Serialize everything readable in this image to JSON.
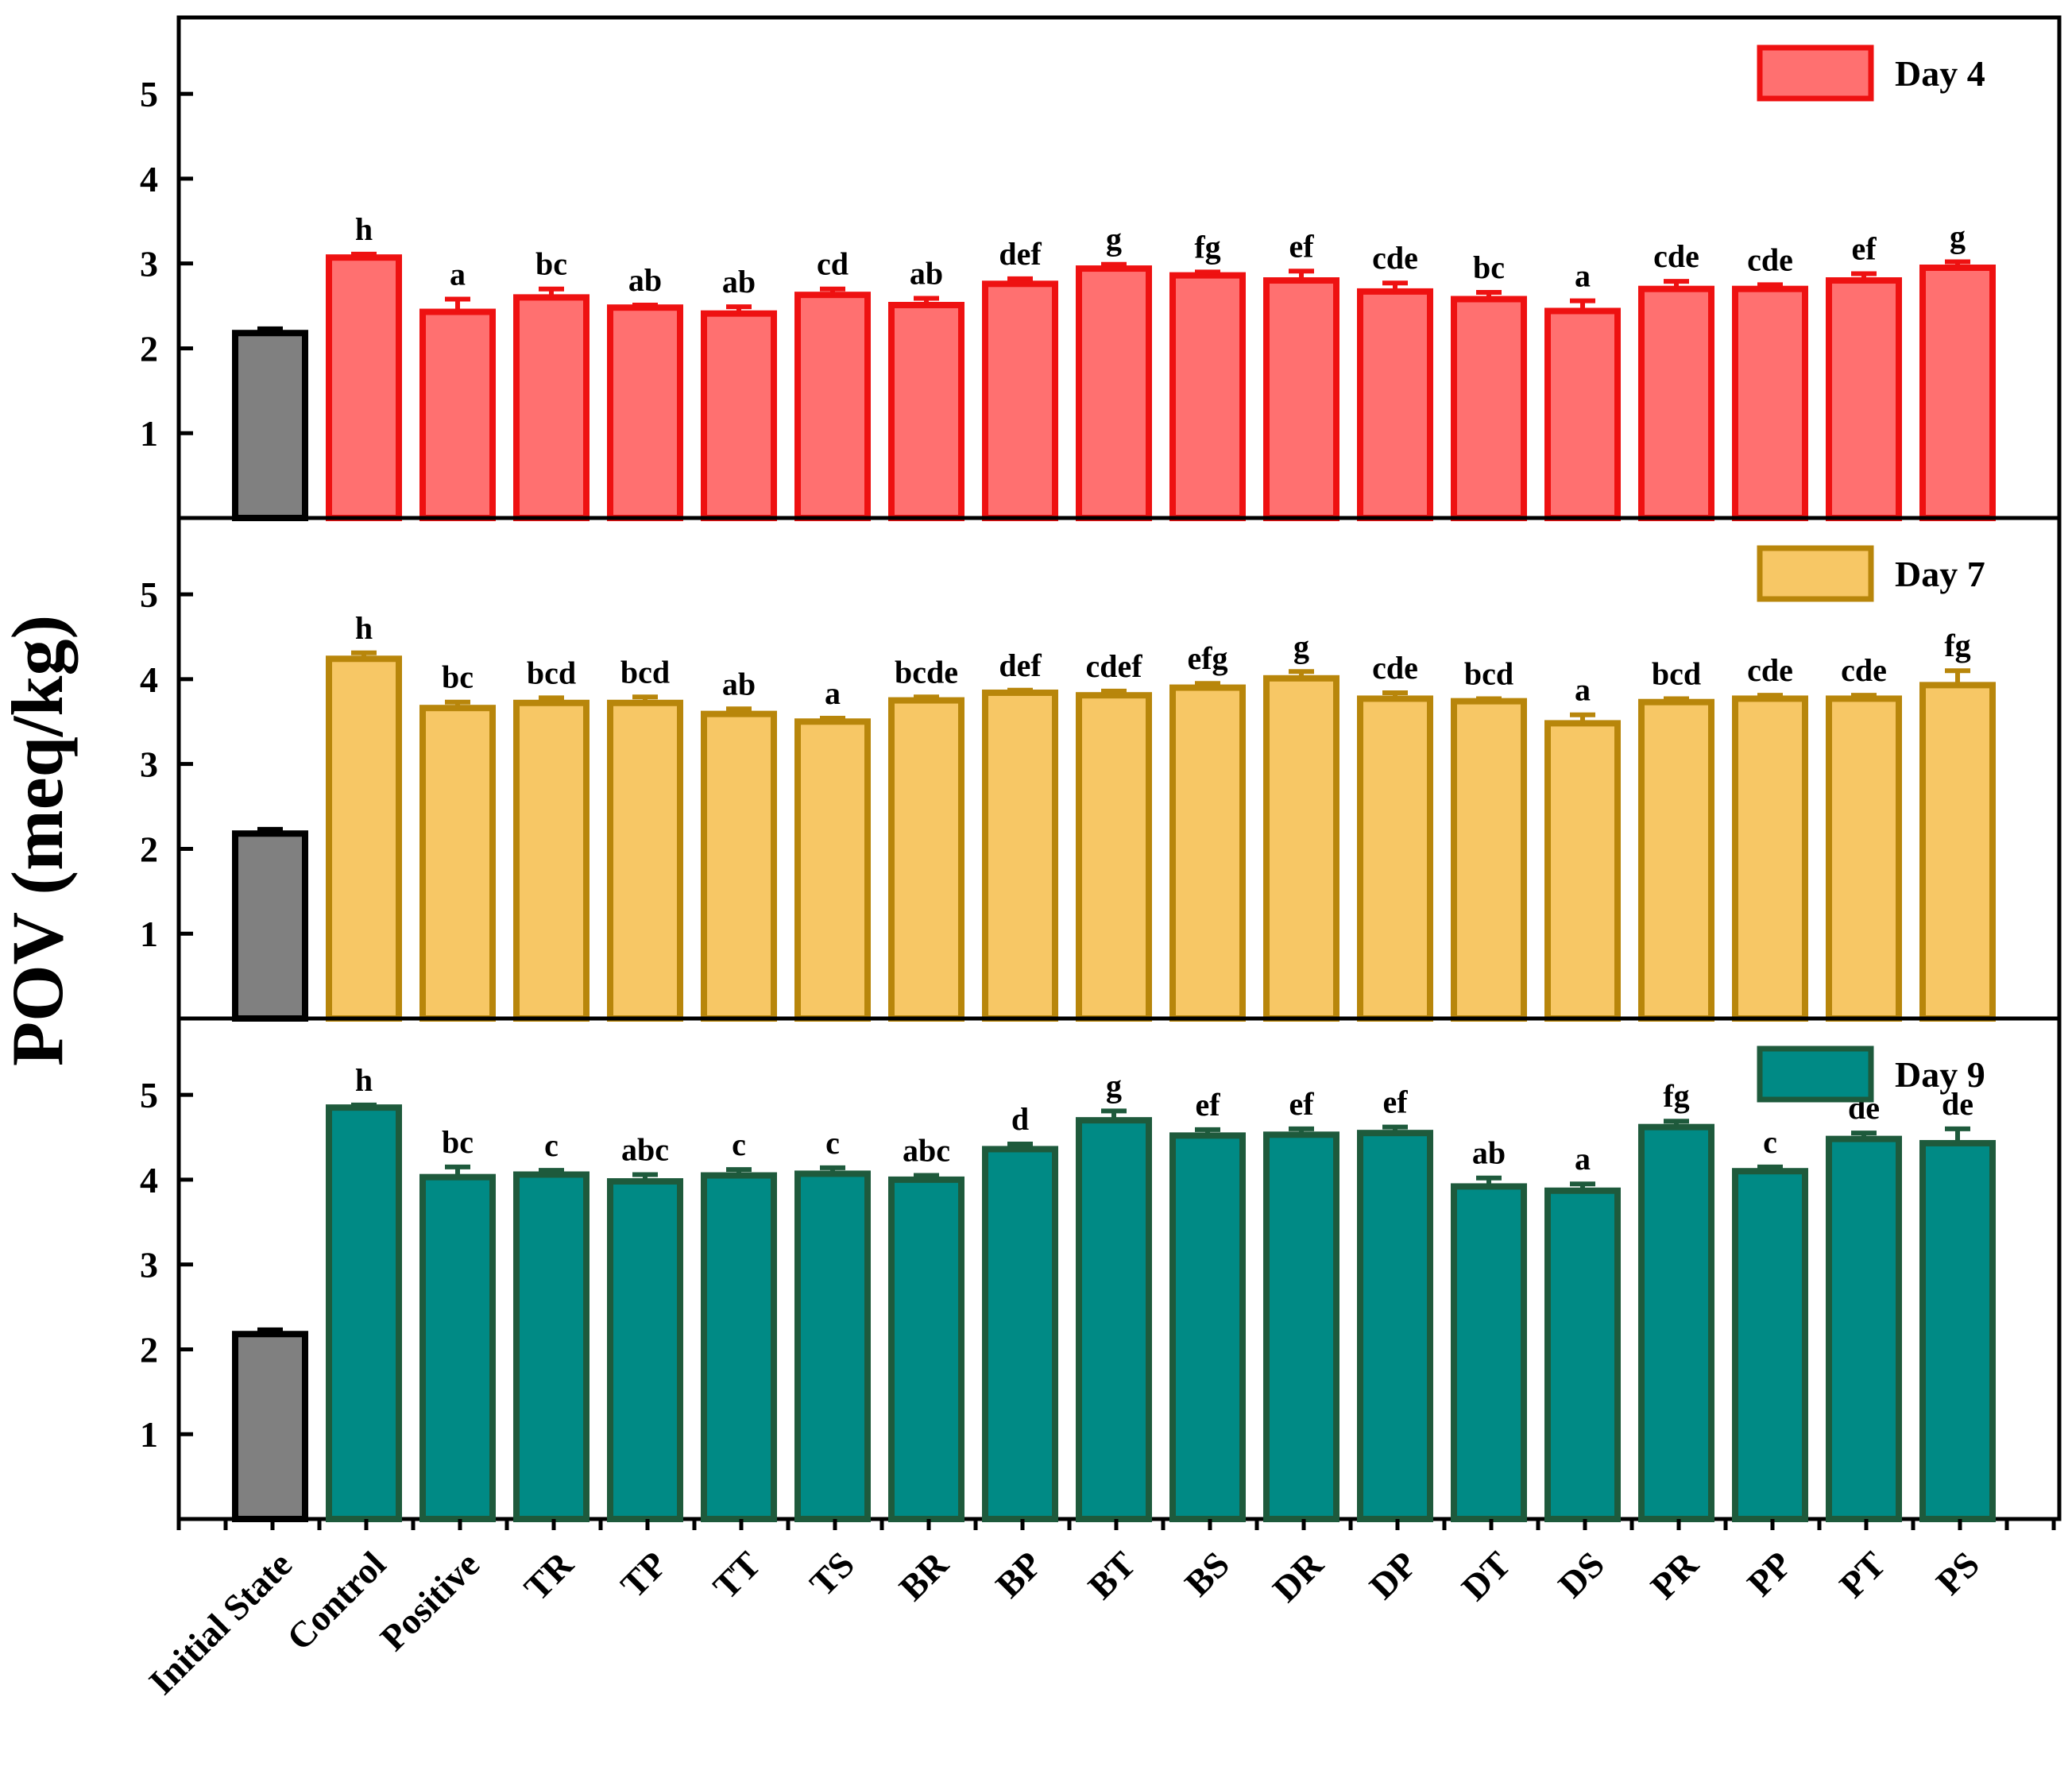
{
  "chart_data": {
    "type": "bar",
    "ylabel": "POV (meq/kg)",
    "xlabel": "",
    "categories": [
      "Initial State",
      "Control",
      "Positive",
      "TR",
      "TP",
      "TT",
      "TS",
      "BR",
      "BP",
      "BT",
      "BS",
      "DR",
      "DP",
      "DT",
      "DS",
      "PR",
      "PP",
      "PT",
      "PS"
    ],
    "ylim": [
      0,
      5.9
    ],
    "yticks": [
      1,
      2,
      3,
      4,
      5
    ],
    "initial_color": "#808080",
    "initial_edge": "#000000",
    "panels": [
      {
        "legend": "Day 4",
        "fill": "#ff7070",
        "edge": "#ee1111",
        "values": [
          2.18,
          3.07,
          2.43,
          2.6,
          2.48,
          2.41,
          2.63,
          2.51,
          2.76,
          2.94,
          2.86,
          2.8,
          2.67,
          2.58,
          2.44,
          2.7,
          2.7,
          2.8,
          2.95
        ],
        "errors": [
          0.05,
          0.04,
          0.15,
          0.1,
          0.03,
          0.08,
          0.07,
          0.08,
          0.06,
          0.05,
          0.04,
          0.11,
          0.1,
          0.08,
          0.12,
          0.09,
          0.05,
          0.08,
          0.07
        ],
        "letters": [
          "",
          "h",
          "a",
          "bc",
          "ab",
          "ab",
          "cd",
          "ab",
          "def",
          "g",
          "fg",
          "ef",
          "cde",
          "bc",
          "a",
          "cde",
          "cde",
          "ef",
          "g"
        ]
      },
      {
        "legend": "Day 7",
        "fill": "#f7c765",
        "edge": "#b8860b",
        "values": [
          2.18,
          4.24,
          3.66,
          3.72,
          3.72,
          3.59,
          3.5,
          3.75,
          3.84,
          3.81,
          3.9,
          4.01,
          3.77,
          3.74,
          3.48,
          3.73,
          3.77,
          3.77,
          3.93
        ],
        "errors": [
          0.05,
          0.07,
          0.07,
          0.06,
          0.07,
          0.06,
          0.04,
          0.04,
          0.03,
          0.05,
          0.05,
          0.08,
          0.07,
          0.03,
          0.1,
          0.04,
          0.04,
          0.04,
          0.17
        ],
        "letters": [
          "",
          "h",
          "bc",
          "bcd",
          "bcd",
          "ab",
          "a",
          "bcde",
          "def",
          "cdef",
          "efg",
          "g",
          "cde",
          "bcd",
          "a",
          "bcd",
          "cde",
          "cde",
          "fg"
        ]
      },
      {
        "legend": "Day 9",
        "fill": "#008a85",
        "edge": "#1e5a3c",
        "values": [
          2.18,
          4.85,
          4.03,
          4.06,
          3.98,
          4.05,
          4.07,
          4.0,
          4.36,
          4.7,
          4.52,
          4.53,
          4.55,
          3.92,
          3.87,
          4.62,
          4.1,
          4.48,
          4.43
        ],
        "errors": [
          0.05,
          0.03,
          0.12,
          0.05,
          0.08,
          0.07,
          0.07,
          0.05,
          0.06,
          0.11,
          0.07,
          0.07,
          0.07,
          0.1,
          0.08,
          0.07,
          0.05,
          0.07,
          0.17
        ],
        "letters": [
          "",
          "h",
          "bc",
          "c",
          "abc",
          "c",
          "c",
          "abc",
          "d",
          "g",
          "ef",
          "ef",
          "ef",
          "ab",
          "a",
          "fg",
          "c",
          "de",
          "de"
        ]
      }
    ]
  }
}
